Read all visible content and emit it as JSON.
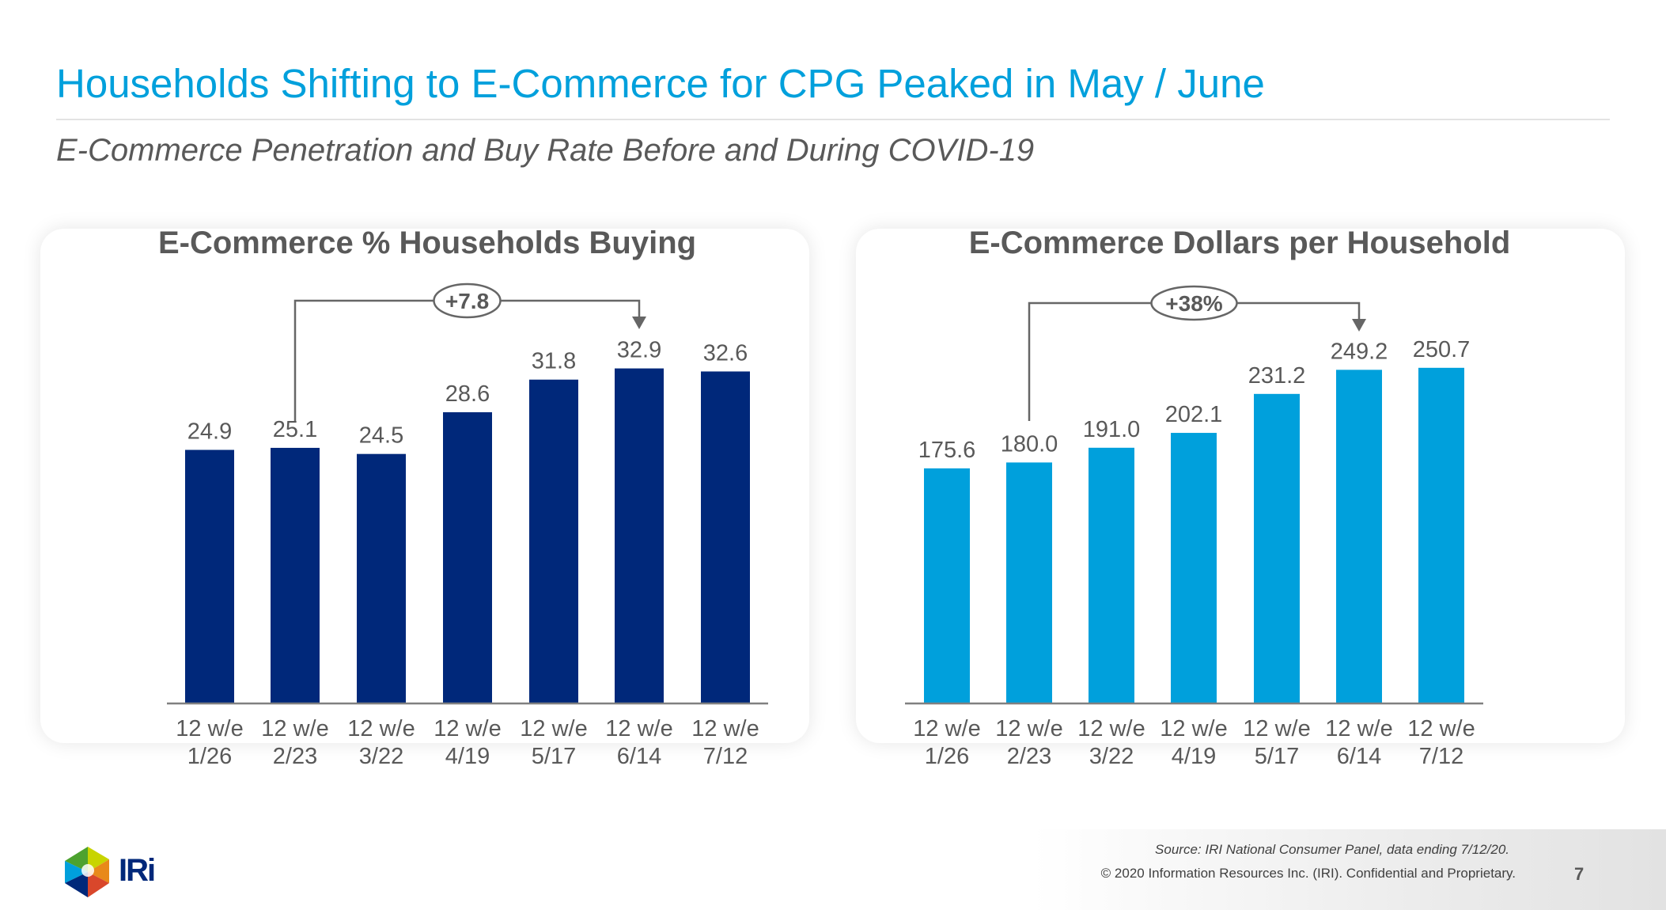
{
  "header": {
    "title": "Households Shifting to E-Commerce for CPG Peaked in May / June",
    "subtitle": "E-Commerce Penetration and Buy Rate Before and During COVID-19"
  },
  "colors": {
    "title": "#00A0DC",
    "dark_bar": "#00287A",
    "light_bar": "#00A0DC",
    "text": "#595959"
  },
  "chart_data": [
    {
      "type": "bar",
      "title": "E-Commerce % Households Buying",
      "categories": [
        [
          "12 w/e",
          "1/26"
        ],
        [
          "12 w/e",
          "2/23"
        ],
        [
          "12 w/e",
          "3/22"
        ],
        [
          "12 w/e",
          "4/19"
        ],
        [
          "12 w/e",
          "5/17"
        ],
        [
          "12 w/e",
          "6/14"
        ],
        [
          "12 w/e",
          "7/12"
        ]
      ],
      "values": [
        24.9,
        25.1,
        24.5,
        28.6,
        31.8,
        32.9,
        32.6
      ],
      "labels": [
        "24.9",
        "25.1",
        "24.5",
        "28.6",
        "31.8",
        "32.9",
        "32.6"
      ],
      "color": "#00287A",
      "ylim": [
        0,
        35
      ],
      "grid": false,
      "annotation": {
        "text": "+7.8",
        "from_index": 1,
        "to_index": 5
      }
    },
    {
      "type": "bar",
      "title": "E-Commerce Dollars per Household",
      "categories": [
        [
          "12 w/e",
          "1/26"
        ],
        [
          "12 w/e",
          "2/23"
        ],
        [
          "12 w/e",
          "3/22"
        ],
        [
          "12 w/e",
          "4/19"
        ],
        [
          "12 w/e",
          "5/17"
        ],
        [
          "12 w/e",
          "6/14"
        ],
        [
          "12 w/e",
          "7/12"
        ]
      ],
      "values": [
        175.6,
        180.0,
        191.0,
        202.1,
        231.2,
        249.2,
        250.7
      ],
      "labels": [
        "175.6",
        "180.0",
        "191.0",
        "202.1",
        "231.2",
        "249.2",
        "250.7"
      ],
      "color": "#00A0DC",
      "ylim": [
        0,
        270
      ],
      "grid": false,
      "annotation": {
        "text": "+38%",
        "from_index": 1,
        "to_index": 5
      }
    }
  ],
  "footer": {
    "source": "Source: IRI National Consumer Panel, data ending 7/12/20.",
    "copyright": "© 2020 Information Resources Inc. (IRI). Confidential and Proprietary.",
    "page_number": "7",
    "logo_text": "IRi"
  }
}
